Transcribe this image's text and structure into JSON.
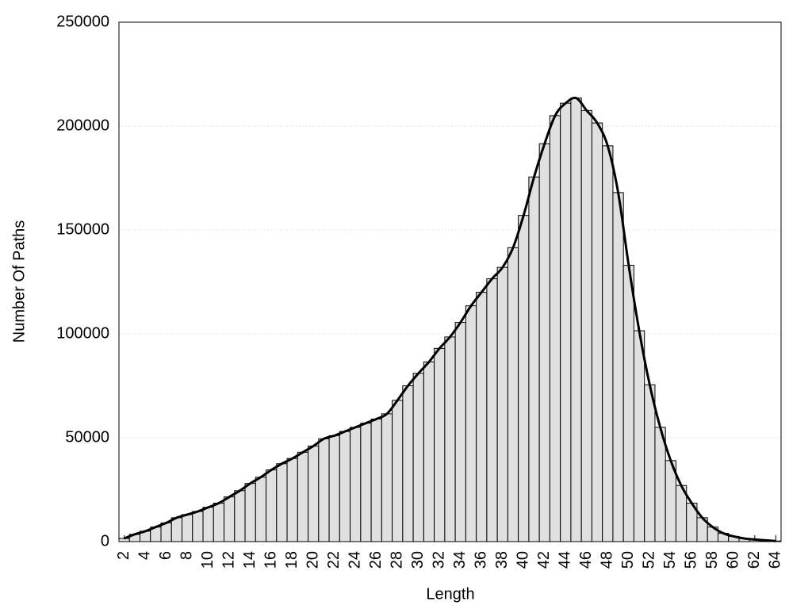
{
  "chart_data": {
    "type": "bar",
    "x_label": "Length",
    "y_label": "Number Of Paths",
    "x": [
      2,
      3,
      4,
      5,
      6,
      7,
      8,
      9,
      10,
      11,
      12,
      13,
      14,
      15,
      16,
      17,
      18,
      19,
      20,
      21,
      22,
      23,
      24,
      25,
      26,
      27,
      28,
      29,
      30,
      31,
      32,
      33,
      34,
      35,
      36,
      37,
      38,
      39,
      40,
      41,
      42,
      43,
      44,
      45,
      46,
      47,
      48,
      49,
      50,
      51,
      52,
      53,
      54,
      55,
      56,
      57,
      58,
      59,
      60,
      61,
      62,
      63,
      64
    ],
    "values": [
      1500,
      3500,
      5000,
      7000,
      9000,
      11500,
      13000,
      14500,
      16500,
      18500,
      21500,
      24500,
      28000,
      31000,
      34500,
      37500,
      40000,
      43000,
      46000,
      49500,
      51000,
      53000,
      55000,
      57000,
      59000,
      61500,
      68000,
      75000,
      81000,
      86500,
      93000,
      98500,
      105500,
      113500,
      120000,
      126500,
      132000,
      141500,
      157000,
      175500,
      191500,
      205000,
      211000,
      213500,
      207500,
      201500,
      190500,
      168000,
      133000,
      101500,
      75500,
      55000,
      39000,
      27000,
      18500,
      11500,
      7000,
      4000,
      2500,
      1500,
      1000,
      600,
      300
    ],
    "color": "#e0e0e0",
    "edge_color": "#000000",
    "smooth_line": true,
    "line_color": "#000000",
    "xlim": [
      1.5,
      64.5
    ],
    "xticks": [
      2,
      4,
      6,
      8,
      10,
      12,
      14,
      16,
      18,
      20,
      22,
      24,
      26,
      28,
      30,
      32,
      34,
      36,
      38,
      40,
      42,
      44,
      46,
      48,
      50,
      52,
      54,
      56,
      58,
      60,
      62,
      64
    ],
    "ylim": [
      0,
      250000
    ],
    "yticks": [
      0,
      50000,
      100000,
      150000,
      200000,
      250000
    ],
    "grid": true
  }
}
